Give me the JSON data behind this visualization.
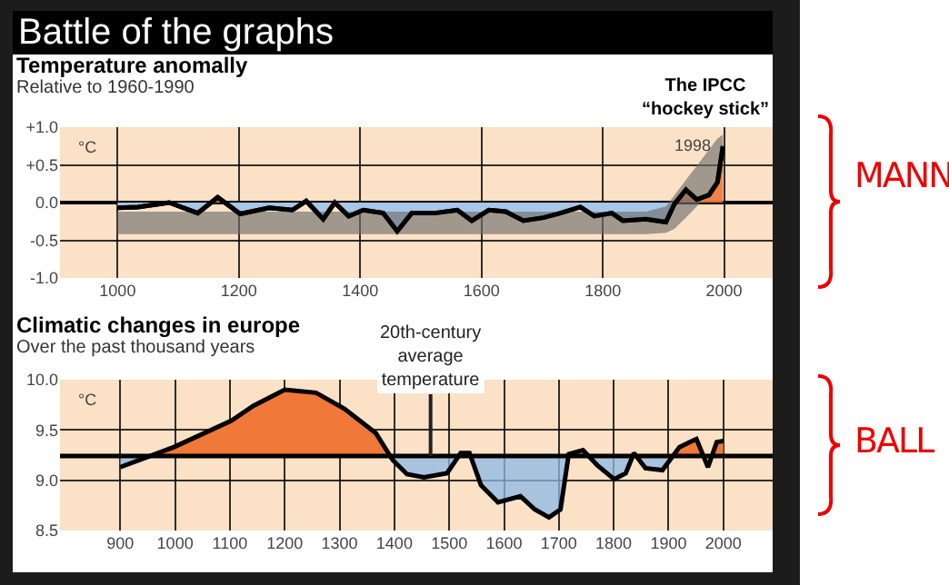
{
  "chart_data": [
    {
      "type": "area",
      "title": "Temperature anomally",
      "subtitle": "Relative to 1960-1990",
      "ylabel": "°C",
      "annotations": [
        "Battle of the graphs",
        "The IPCC “hockey stick”",
        {
          "text": "1998",
          "x": 1998,
          "y": 0.75
        },
        "MANN"
      ],
      "x": [
        1000,
        1033,
        1085,
        1132,
        1165,
        1202,
        1250,
        1288,
        1311,
        1339,
        1358,
        1381,
        1405,
        1438,
        1461,
        1485,
        1523,
        1560,
        1584,
        1612,
        1640,
        1669,
        1702,
        1730,
        1763,
        1786,
        1815,
        1833,
        1871,
        1904,
        1918,
        1937,
        1955,
        1975,
        1989,
        1998
      ],
      "series": [
        {
          "color": "#a8c6e6",
          "values": [
            -0.07,
            -0.06,
            0.0,
            -0.14,
            0.07,
            -0.15,
            -0.07,
            -0.1,
            0.02,
            -0.22,
            0.0,
            -0.18,
            -0.1,
            -0.14,
            -0.38,
            -0.14,
            -0.14,
            -0.1,
            -0.24,
            -0.1,
            -0.12,
            -0.24,
            -0.2,
            -0.14,
            -0.06,
            -0.18,
            -0.14,
            -0.24,
            -0.22,
            -0.26,
            -0.02,
            0.17,
            0.04,
            0.1,
            0.27,
            0.75
          ],
          "lower": [
            -0.42,
            -0.42,
            -0.42,
            -0.42,
            -0.42,
            -0.42,
            -0.42,
            -0.42,
            -0.42,
            -0.42,
            -0.42,
            -0.42,
            -0.42,
            -0.42,
            -0.42,
            -0.42,
            -0.42,
            -0.42,
            -0.42,
            -0.42,
            -0.42,
            -0.42,
            -0.42,
            -0.42,
            -0.42,
            -0.42,
            -0.42,
            -0.42,
            -0.42,
            -0.4,
            -0.35,
            -0.2,
            -0.05,
            0.15,
            0.3,
            0.4
          ],
          "upper": [
            -0.12,
            -0.12,
            -0.12,
            -0.12,
            -0.12,
            -0.12,
            -0.12,
            -0.12,
            -0.12,
            -0.12,
            -0.12,
            -0.12,
            -0.12,
            -0.12,
            -0.12,
            -0.12,
            -0.12,
            -0.12,
            -0.12,
            -0.12,
            -0.12,
            -0.12,
            -0.12,
            -0.12,
            -0.12,
            -0.12,
            -0.12,
            -0.12,
            -0.12,
            -0.05,
            0.1,
            0.3,
            0.5,
            0.7,
            0.85,
            0.9
          ]
        }
      ],
      "xlim": [
        905,
        2080
      ],
      "xticks": [
        1000,
        1200,
        1400,
        1600,
        1800,
        2000
      ],
      "ylim": [
        -1.0,
        1.0
      ],
      "yticks": [
        {
          "value": -1.0,
          "label": "-1.0"
        },
        {
          "value": -0.5,
          "label": "-0.5"
        },
        {
          "value": 0,
          "label": "0.0"
        },
        {
          "value": 0.5,
          "label": "+0.5"
        },
        {
          "value": 1.0,
          "label": "+1.0"
        }
      ],
      "grid": true
    },
    {
      "type": "area",
      "title": "Climatic changes in europe",
      "subtitle": "Over the past thousand years",
      "ylabel": "°C",
      "annotations": [
        "BALL"
      ],
      "x": [
        900,
        998,
        1102,
        1143,
        1200,
        1257,
        1309,
        1366,
        1397,
        1423,
        1454,
        1496,
        1521,
        1537,
        1558,
        1589,
        1630,
        1656,
        1682,
        1703,
        1718,
        1744,
        1770,
        1801,
        1822,
        1837,
        1858,
        1889,
        1920,
        1951,
        1972,
        1988,
        2000
      ],
      "series": [
        {
          "color": "#f07838",
          "values": [
            9.13,
            9.33,
            9.59,
            9.74,
            9.9,
            9.87,
            9.71,
            9.47,
            9.2,
            9.06,
            9.03,
            9.07,
            9.27,
            9.27,
            8.95,
            8.78,
            8.84,
            8.71,
            8.63,
            8.71,
            9.26,
            9.3,
            9.15,
            9.01,
            9.07,
            9.27,
            9.12,
            9.1,
            9.33,
            9.41,
            9.13,
            9.38,
            9.39
          ]
        }
      ],
      "ref_lines": [
        {
          "axis": "y",
          "value": 9.24,
          "label": "20th-century average temperature",
          "color": "#000000"
        }
      ],
      "xlim": [
        790,
        2090
      ],
      "xticks": [
        900,
        1000,
        1100,
        1200,
        1300,
        1400,
        1500,
        1600,
        1700,
        1800,
        1900,
        2000
      ],
      "ylim": [
        8.5,
        10.0
      ],
      "yticks": [
        {
          "value": 8.5,
          "label": "8.5"
        },
        {
          "value": 9.0,
          "label": "9.0"
        },
        {
          "value": 9.5,
          "label": "9.5"
        },
        {
          "value": 10.0,
          "label": "10.0"
        }
      ],
      "grid": true
    }
  ]
}
